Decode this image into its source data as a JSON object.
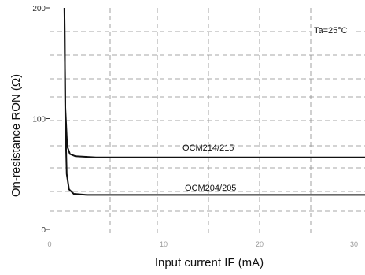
{
  "chart_data": {
    "type": "line",
    "title": "",
    "xlabel": "Input current  IF (mA)",
    "ylabel": "On-resistance  RON (Ω)",
    "ylim": [
      0,
      200
    ],
    "x_tick_labels": [
      "0",
      "10",
      "20",
      "30"
    ],
    "y_ticks": [
      0,
      100,
      200
    ],
    "y_tick_labels": [
      "0",
      "100",
      "200"
    ],
    "grid": true,
    "grid_style": "dashed",
    "condition_label": "Ta=25°C",
    "series": [
      {
        "name": "OCM214/215",
        "points": [
          [
            1.6,
            200
          ],
          [
            1.7,
            110
          ],
          [
            1.9,
            75
          ],
          [
            2.2,
            68
          ],
          [
            2.8,
            66
          ],
          [
            5,
            65
          ],
          [
            10,
            65
          ],
          [
            20,
            65
          ],
          [
            30,
            65
          ],
          [
            34,
            65
          ]
        ]
      },
      {
        "name": "OCM204/205",
        "points": [
          [
            1.6,
            200
          ],
          [
            1.7,
            100
          ],
          [
            1.85,
            50
          ],
          [
            2.1,
            36
          ],
          [
            2.6,
            32
          ],
          [
            4,
            31
          ],
          [
            10,
            31
          ],
          [
            20,
            31
          ],
          [
            30,
            31
          ],
          [
            34,
            31
          ]
        ]
      }
    ]
  }
}
